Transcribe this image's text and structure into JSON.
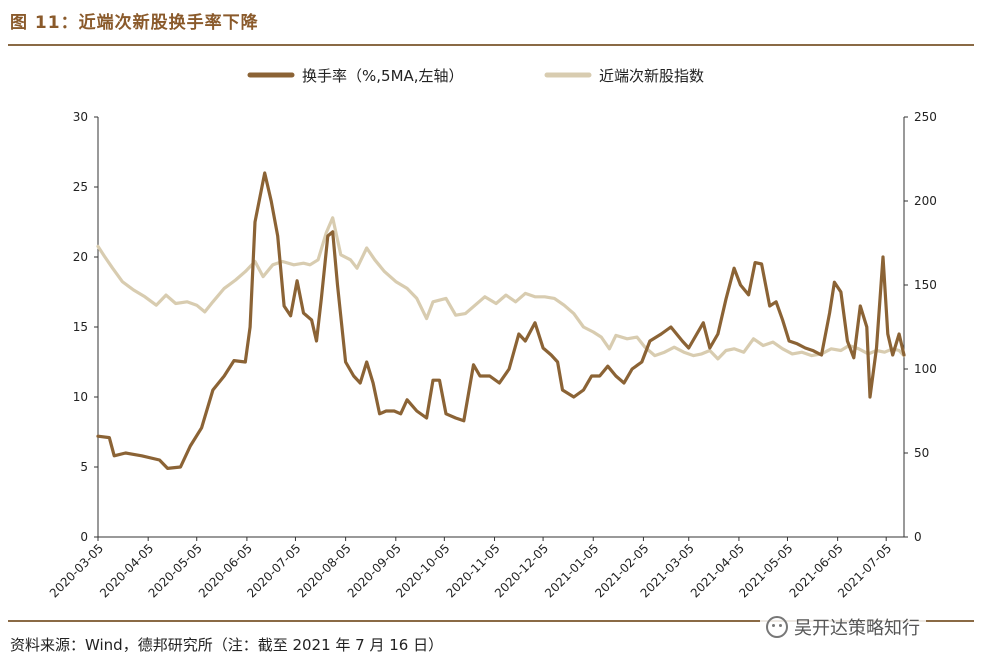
{
  "header": {
    "title": "图 11：近端次新股换手率下降"
  },
  "footer": {
    "source": "资料来源：Wind，德邦研究所（注：截至 2021 年 7 月 16 日）"
  },
  "watermark": {
    "text": "吴开达策略知行",
    "icon": "wechat-icon"
  },
  "colors": {
    "turnover": "#8B6335",
    "index": "#D8CCB0",
    "axis": "#333333",
    "rule": "#8a6a45"
  },
  "chart_data": {
    "type": "line",
    "legend_position": "top",
    "grid": false,
    "x_ticks": [
      "2020-03-05",
      "2020-04-05",
      "2020-05-05",
      "2020-06-05",
      "2020-07-05",
      "2020-08-05",
      "2020-09-05",
      "2020-10-05",
      "2020-11-05",
      "2020-12-05",
      "2021-01-05",
      "2021-02-05",
      "2021-03-05",
      "2021-04-05",
      "2021-05-05",
      "2021-06-05",
      "2021-07-05"
    ],
    "x_range": [
      "2020-03-05",
      "2021-07-16"
    ],
    "y_left": {
      "range": [
        0,
        30
      ],
      "ticks": [
        0,
        5,
        10,
        15,
        20,
        25,
        30
      ]
    },
    "y_right": {
      "range": [
        0,
        250
      ],
      "ticks": [
        0,
        50,
        100,
        150,
        200,
        250
      ]
    },
    "series": [
      {
        "name": "换手率（%,5MA,左轴）",
        "axis": "left",
        "points": [
          [
            "2020-03-05",
            7.2
          ],
          [
            "2020-03-12",
            7.1
          ],
          [
            "2020-03-15",
            5.8
          ],
          [
            "2020-03-22",
            6.0
          ],
          [
            "2020-04-01",
            5.8
          ],
          [
            "2020-04-12",
            5.5
          ],
          [
            "2020-04-17",
            4.9
          ],
          [
            "2020-04-25",
            5.0
          ],
          [
            "2020-05-01",
            6.5
          ],
          [
            "2020-05-08",
            7.8
          ],
          [
            "2020-05-15",
            10.5
          ],
          [
            "2020-05-22",
            11.5
          ],
          [
            "2020-05-28",
            12.6
          ],
          [
            "2020-06-04",
            12.5
          ],
          [
            "2020-06-07",
            15.0
          ],
          [
            "2020-06-10",
            22.5
          ],
          [
            "2020-06-16",
            26.0
          ],
          [
            "2020-06-20",
            24.0
          ],
          [
            "2020-06-24",
            21.5
          ],
          [
            "2020-06-28",
            16.5
          ],
          [
            "2020-07-02",
            15.8
          ],
          [
            "2020-07-06",
            18.3
          ],
          [
            "2020-07-10",
            16.0
          ],
          [
            "2020-07-15",
            15.5
          ],
          [
            "2020-07-18",
            14.0
          ],
          [
            "2020-07-21",
            17.0
          ],
          [
            "2020-07-25",
            21.5
          ],
          [
            "2020-07-28",
            21.8
          ],
          [
            "2020-07-31",
            18.0
          ],
          [
            "2020-08-05",
            12.5
          ],
          [
            "2020-08-10",
            11.5
          ],
          [
            "2020-08-14",
            11.0
          ],
          [
            "2020-08-18",
            12.5
          ],
          [
            "2020-08-22",
            11.0
          ],
          [
            "2020-08-26",
            8.8
          ],
          [
            "2020-08-30",
            9.0
          ],
          [
            "2020-09-04",
            9.0
          ],
          [
            "2020-09-08",
            8.8
          ],
          [
            "2020-09-12",
            9.8
          ],
          [
            "2020-09-18",
            9.0
          ],
          [
            "2020-09-24",
            8.5
          ],
          [
            "2020-09-28",
            11.2
          ],
          [
            "2020-10-02",
            11.2
          ],
          [
            "2020-10-06",
            8.8
          ],
          [
            "2020-10-12",
            8.5
          ],
          [
            "2020-10-17",
            8.3
          ],
          [
            "2020-10-23",
            12.3
          ],
          [
            "2020-10-27",
            11.5
          ],
          [
            "2020-11-02",
            11.5
          ],
          [
            "2020-11-08",
            11.0
          ],
          [
            "2020-11-14",
            12.0
          ],
          [
            "2020-11-20",
            14.5
          ],
          [
            "2020-11-24",
            14.0
          ],
          [
            "2020-11-30",
            15.3
          ],
          [
            "2020-12-05",
            13.5
          ],
          [
            "2020-12-10",
            13.0
          ],
          [
            "2020-12-14",
            12.5
          ],
          [
            "2020-12-17",
            10.5
          ],
          [
            "2020-12-24",
            10.0
          ],
          [
            "2020-12-30",
            10.5
          ],
          [
            "2021-01-04",
            11.5
          ],
          [
            "2021-01-09",
            11.5
          ],
          [
            "2021-01-14",
            12.2
          ],
          [
            "2021-01-19",
            11.5
          ],
          [
            "2021-01-24",
            11.0
          ],
          [
            "2021-01-29",
            12.0
          ],
          [
            "2021-02-04",
            12.5
          ],
          [
            "2021-02-09",
            14.0
          ],
          [
            "2021-02-16",
            14.5
          ],
          [
            "2021-02-22",
            15.0
          ],
          [
            "2021-03-01",
            14.0
          ],
          [
            "2021-03-05",
            13.5
          ],
          [
            "2021-03-10",
            14.5
          ],
          [
            "2021-03-14",
            15.3
          ],
          [
            "2021-03-18",
            13.5
          ],
          [
            "2021-03-23",
            14.5
          ],
          [
            "2021-03-28",
            17.0
          ],
          [
            "2021-04-02",
            19.2
          ],
          [
            "2021-04-06",
            18.0
          ],
          [
            "2021-04-11",
            17.3
          ],
          [
            "2021-04-15",
            19.6
          ],
          [
            "2021-04-19",
            19.5
          ],
          [
            "2021-04-24",
            16.5
          ],
          [
            "2021-04-28",
            16.8
          ],
          [
            "2021-05-02",
            15.5
          ],
          [
            "2021-05-06",
            14.0
          ],
          [
            "2021-05-11",
            13.8
          ],
          [
            "2021-05-16",
            13.5
          ],
          [
            "2021-05-21",
            13.3
          ],
          [
            "2021-05-26",
            13.0
          ],
          [
            "2021-05-31",
            16.0
          ],
          [
            "2021-06-03",
            18.2
          ],
          [
            "2021-06-07",
            17.5
          ],
          [
            "2021-06-11",
            14.0
          ],
          [
            "2021-06-15",
            12.8
          ],
          [
            "2021-06-19",
            16.5
          ],
          [
            "2021-06-23",
            15.0
          ],
          [
            "2021-06-25",
            10.0
          ],
          [
            "2021-06-29",
            13.5
          ],
          [
            "2021-07-03",
            20.0
          ],
          [
            "2021-07-06",
            14.5
          ],
          [
            "2021-07-09",
            13.0
          ],
          [
            "2021-07-13",
            14.5
          ],
          [
            "2021-07-16",
            13.0
          ]
        ]
      },
      {
        "name": "近端次新股指数",
        "axis": "right",
        "points": [
          [
            "2020-03-05",
            173
          ],
          [
            "2020-03-09",
            167
          ],
          [
            "2020-03-14",
            160
          ],
          [
            "2020-03-20",
            152
          ],
          [
            "2020-03-27",
            147
          ],
          [
            "2020-04-03",
            143
          ],
          [
            "2020-04-10",
            138
          ],
          [
            "2020-04-16",
            144
          ],
          [
            "2020-04-22",
            139
          ],
          [
            "2020-04-29",
            140
          ],
          [
            "2020-05-05",
            138
          ],
          [
            "2020-05-10",
            134
          ],
          [
            "2020-05-15",
            140
          ],
          [
            "2020-05-22",
            148
          ],
          [
            "2020-05-29",
            153
          ],
          [
            "2020-06-04",
            158
          ],
          [
            "2020-06-10",
            164
          ],
          [
            "2020-06-15",
            155
          ],
          [
            "2020-06-21",
            162
          ],
          [
            "2020-06-27",
            164
          ],
          [
            "2020-07-04",
            162
          ],
          [
            "2020-07-10",
            163
          ],
          [
            "2020-07-14",
            162
          ],
          [
            "2020-07-19",
            165
          ],
          [
            "2020-07-24",
            181
          ],
          [
            "2020-07-28",
            190
          ],
          [
            "2020-08-02",
            168
          ],
          [
            "2020-08-08",
            165
          ],
          [
            "2020-08-12",
            160
          ],
          [
            "2020-08-18",
            172
          ],
          [
            "2020-08-23",
            165
          ],
          [
            "2020-08-29",
            158
          ],
          [
            "2020-09-05",
            152
          ],
          [
            "2020-09-12",
            148
          ],
          [
            "2020-09-18",
            142
          ],
          [
            "2020-09-24",
            130
          ],
          [
            "2020-09-28",
            140
          ],
          [
            "2020-10-06",
            142
          ],
          [
            "2020-10-12",
            132
          ],
          [
            "2020-10-18",
            133
          ],
          [
            "2020-10-24",
            138
          ],
          [
            "2020-10-30",
            143
          ],
          [
            "2020-11-06",
            139
          ],
          [
            "2020-11-12",
            144
          ],
          [
            "2020-11-18",
            140
          ],
          [
            "2020-11-24",
            145
          ],
          [
            "2020-11-30",
            143
          ],
          [
            "2020-12-06",
            143
          ],
          [
            "2020-12-12",
            142
          ],
          [
            "2020-12-18",
            138
          ],
          [
            "2020-12-24",
            133
          ],
          [
            "2020-12-30",
            125
          ],
          [
            "2021-01-05",
            122
          ],
          [
            "2021-01-10",
            119
          ],
          [
            "2021-01-15",
            112
          ],
          [
            "2021-01-19",
            120
          ],
          [
            "2021-01-26",
            118
          ],
          [
            "2021-02-01",
            119
          ],
          [
            "2021-02-06",
            113
          ],
          [
            "2021-02-12",
            108
          ],
          [
            "2021-02-18",
            110
          ],
          [
            "2021-02-24",
            113
          ],
          [
            "2021-03-02",
            110
          ],
          [
            "2021-03-08",
            108
          ],
          [
            "2021-03-13",
            109
          ],
          [
            "2021-03-18",
            111
          ],
          [
            "2021-03-23",
            106
          ],
          [
            "2021-03-28",
            111
          ],
          [
            "2021-04-02",
            112
          ],
          [
            "2021-04-08",
            110
          ],
          [
            "2021-04-14",
            118
          ],
          [
            "2021-04-20",
            114
          ],
          [
            "2021-04-26",
            116
          ],
          [
            "2021-05-02",
            112
          ],
          [
            "2021-05-08",
            109
          ],
          [
            "2021-05-14",
            110
          ],
          [
            "2021-05-20",
            108
          ],
          [
            "2021-05-26",
            109
          ],
          [
            "2021-06-01",
            112
          ],
          [
            "2021-06-07",
            111
          ],
          [
            "2021-06-12",
            114
          ],
          [
            "2021-06-18",
            112
          ],
          [
            "2021-06-24",
            109
          ],
          [
            "2021-06-29",
            111
          ],
          [
            "2021-07-04",
            110
          ],
          [
            "2021-07-09",
            112
          ],
          [
            "2021-07-13",
            111
          ],
          [
            "2021-07-16",
            108
          ]
        ]
      }
    ]
  }
}
